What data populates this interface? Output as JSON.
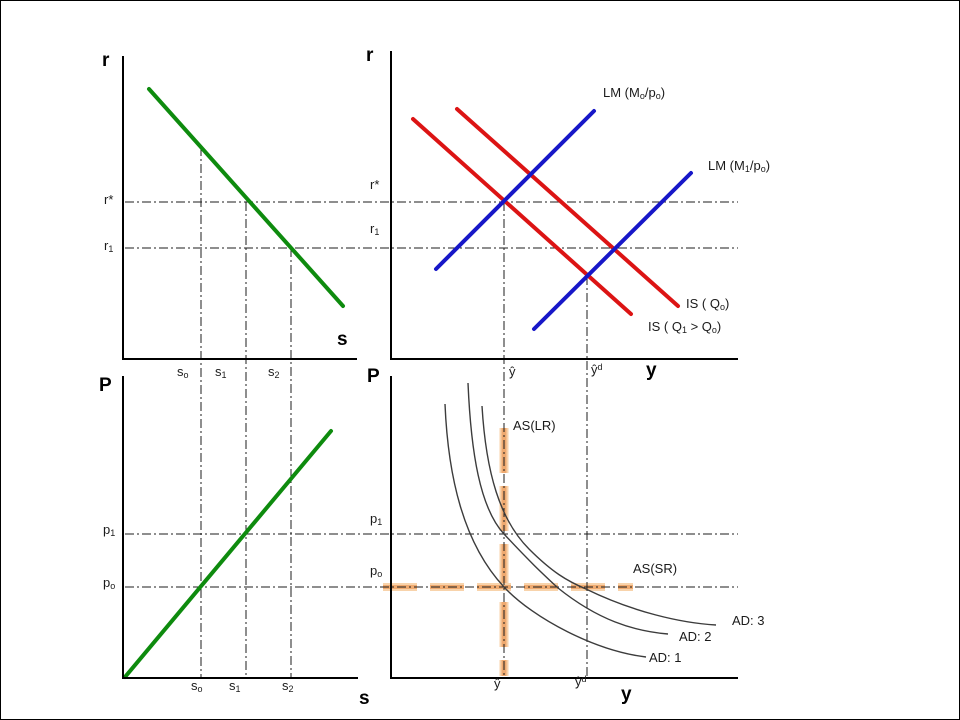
{
  "colors": {
    "axis": "#000000",
    "guide": "#1c1c1c",
    "green_line": "#0e8b0e",
    "red_line": "#dc1414",
    "blue_line": "#1717c8",
    "orange_outer": "#f8d3ab",
    "orange_inner": "#efaa70",
    "ad_curve": "#3c3c3c"
  },
  "top_left": {
    "y_label": "r",
    "x_label": "s",
    "tick_r_star": [
      {
        "t": "r*"
      }
    ],
    "tick_r1": [
      {
        "t": "r"
      },
      {
        "s": "1"
      }
    ],
    "tick_s0": [
      {
        "t": "s"
      },
      {
        "s": "o"
      }
    ],
    "tick_s1": [
      {
        "t": "s"
      },
      {
        "s": "1"
      }
    ],
    "tick_s2": [
      {
        "t": "s"
      },
      {
        "s": "2"
      }
    ]
  },
  "top_right": {
    "y_label": "r",
    "x_label": "y",
    "tick_r_star": [
      {
        "t": "r*"
      }
    ],
    "tick_r1": [
      {
        "t": "r"
      },
      {
        "s": "1"
      }
    ],
    "tick_yhat": [
      {
        "t": "ŷ"
      }
    ],
    "tick_yhat_d": [
      {
        "t": "ŷ"
      },
      {
        "p": "d"
      }
    ],
    "lm0_label": [
      {
        "t": "LM (M"
      },
      {
        "s": "o"
      },
      {
        "t": "/p"
      },
      {
        "s": "o"
      },
      {
        "t": ")"
      }
    ],
    "lm1_label": [
      {
        "t": "LM (M"
      },
      {
        "s": "1"
      },
      {
        "t": "/p"
      },
      {
        "s": "o"
      },
      {
        "t": ")"
      }
    ],
    "is0_label": [
      {
        "t": "IS ( Q"
      },
      {
        "s": "o"
      },
      {
        "t": ")"
      }
    ],
    "is1_label": [
      {
        "t": "IS ( Q"
      },
      {
        "s": "1"
      },
      {
        "t": " > Q"
      },
      {
        "s": "o"
      },
      {
        "t": ")"
      }
    ]
  },
  "bottom_left": {
    "y_label": "P",
    "x_label": "s",
    "tick_p1": [
      {
        "t": "p"
      },
      {
        "s": "1"
      }
    ],
    "tick_p0": [
      {
        "t": "p"
      },
      {
        "s": "o"
      }
    ],
    "tick_s0": [
      {
        "t": "s"
      },
      {
        "s": "o"
      }
    ],
    "tick_s1": [
      {
        "t": "s"
      },
      {
        "s": "1"
      }
    ],
    "tick_s2": [
      {
        "t": "s"
      },
      {
        "s": "2"
      }
    ]
  },
  "bottom_right": {
    "y_label": "P",
    "x_label": "y",
    "tick_p1": [
      {
        "t": "p"
      },
      {
        "s": "1"
      }
    ],
    "tick_p0": [
      {
        "t": "p"
      },
      {
        "s": "o"
      }
    ],
    "tick_yhat": [
      {
        "t": "ŷ"
      }
    ],
    "tick_yhat_d": [
      {
        "t": "ŷ"
      },
      {
        "p": "d"
      }
    ],
    "as_lr_label": [
      {
        "t": "AS(LR)"
      }
    ],
    "as_sr_label": [
      {
        "t": "AS(SR)"
      }
    ],
    "ad1_label": [
      {
        "t": "AD: 1"
      }
    ],
    "ad2_label": [
      {
        "t": "AD: 2"
      }
    ],
    "ad3_label": [
      {
        "t": "AD: 3"
      }
    ]
  }
}
